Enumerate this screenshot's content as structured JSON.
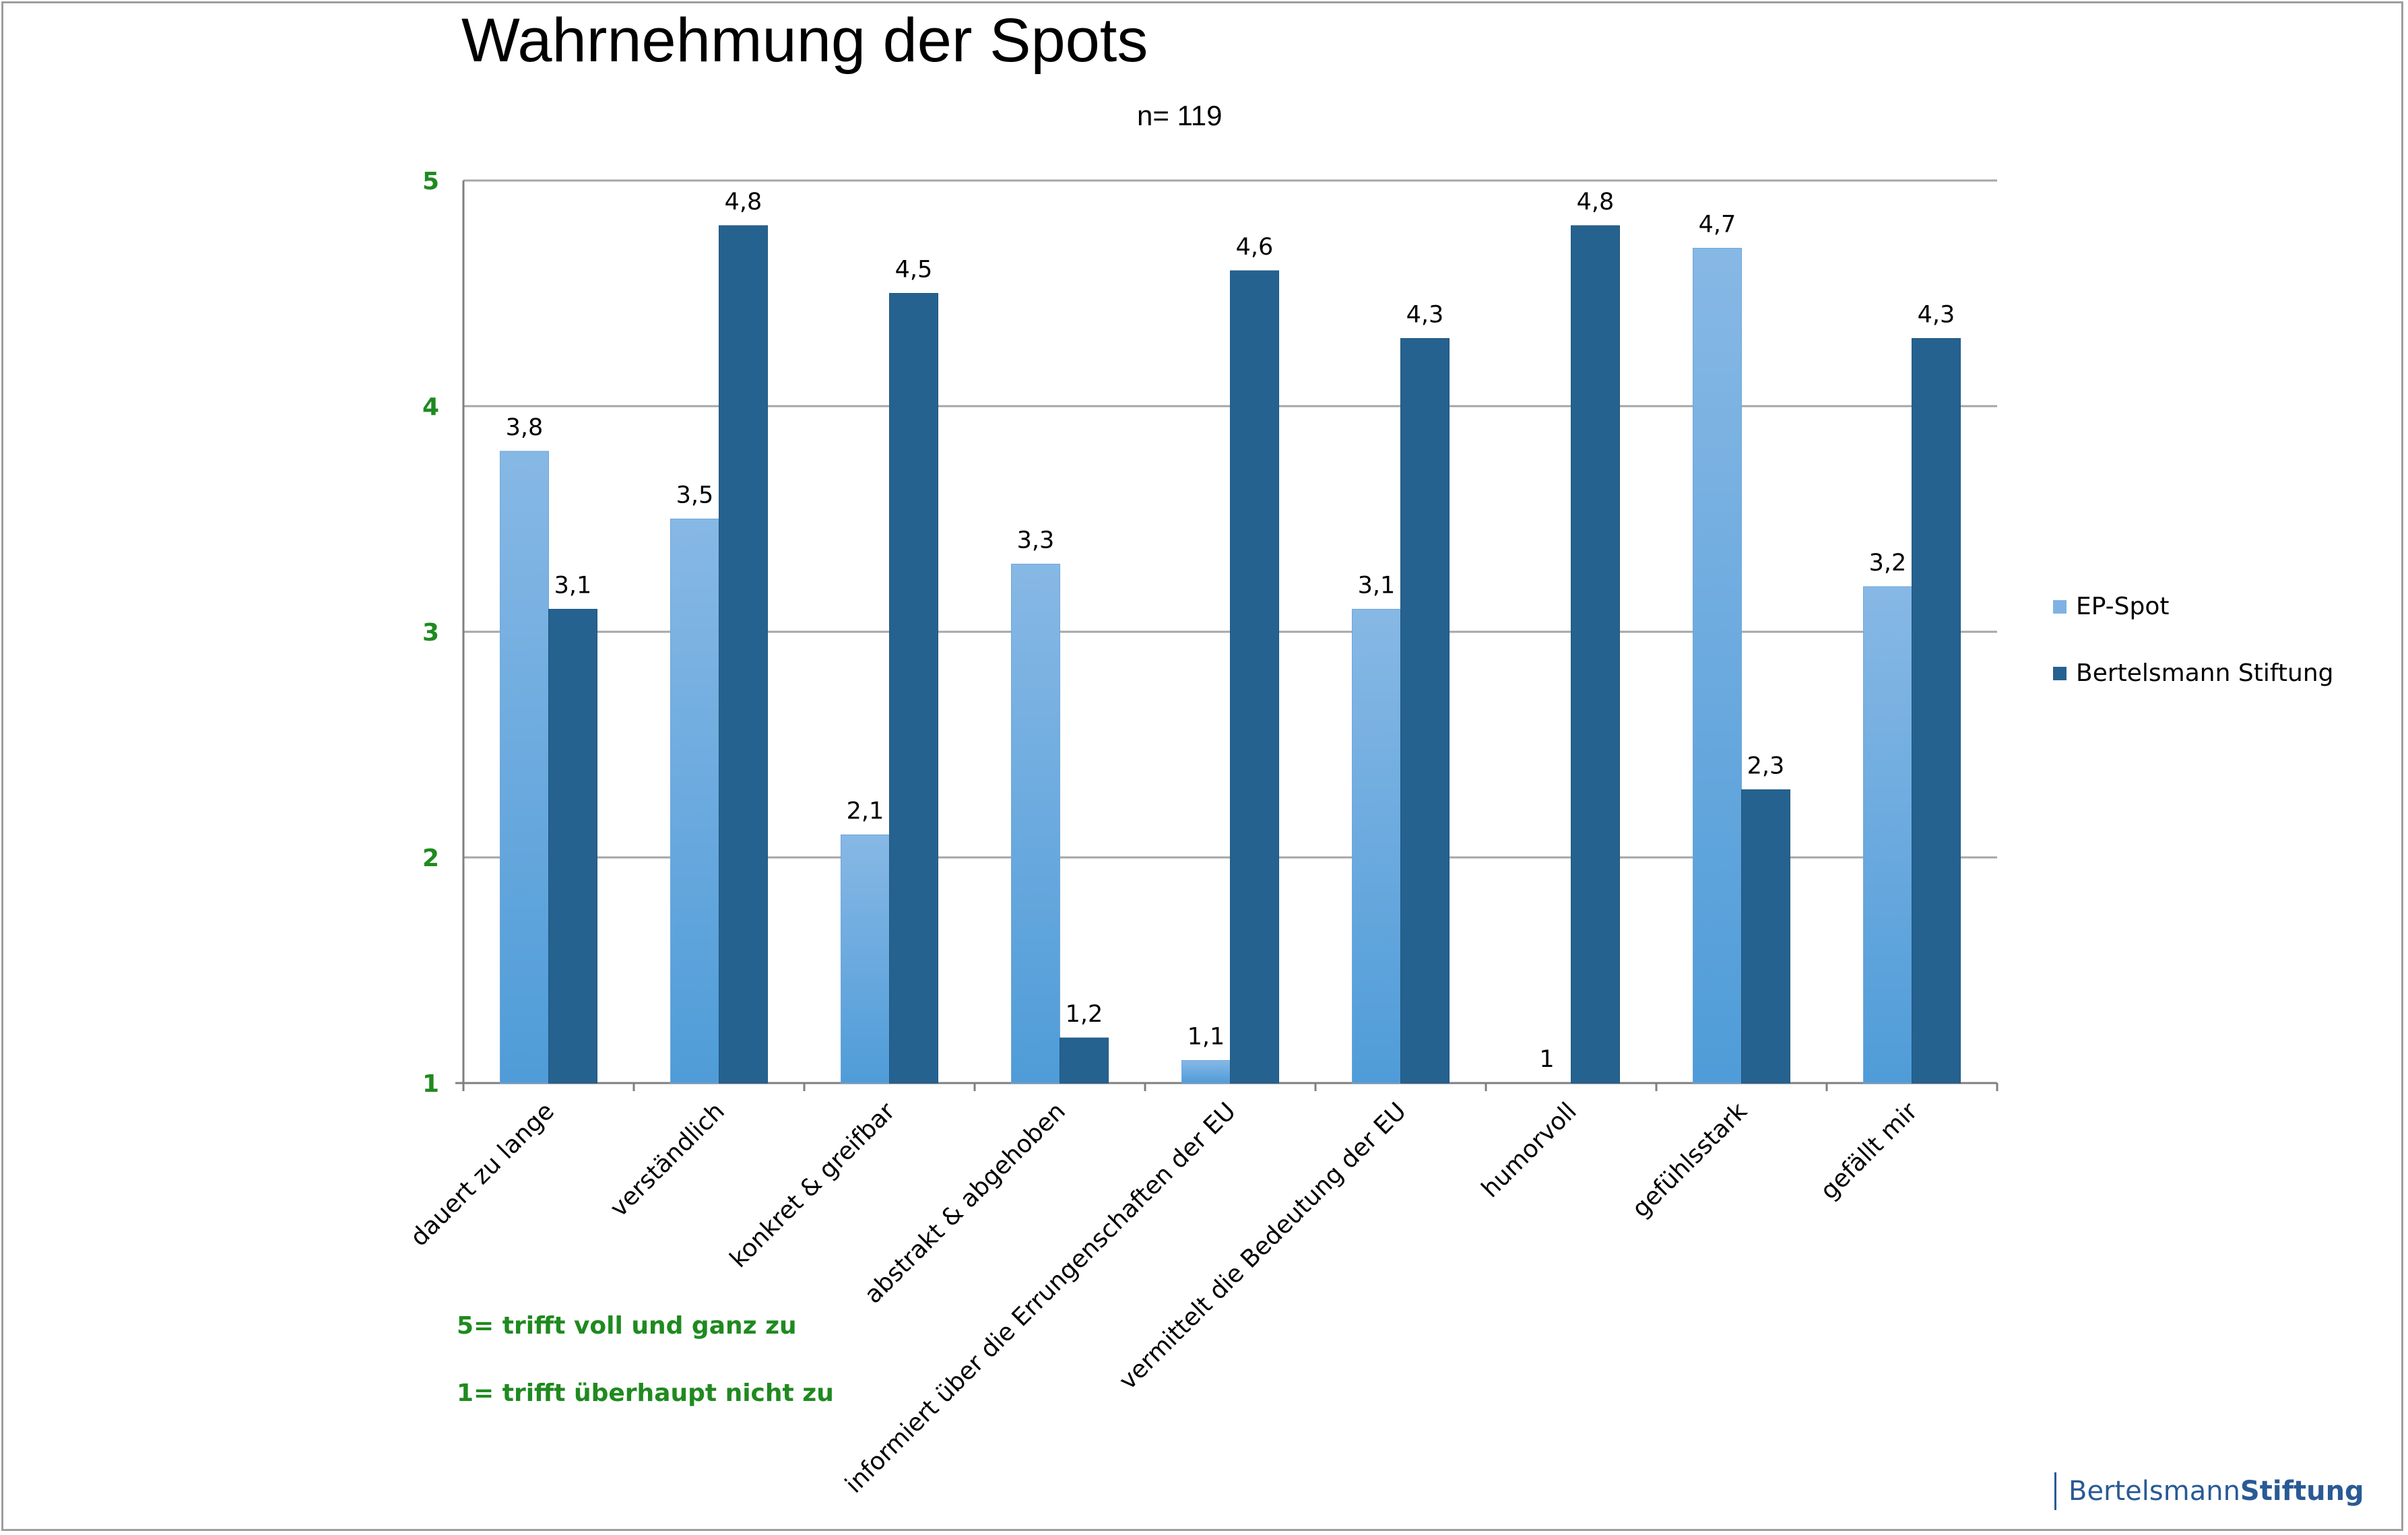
{
  "chart_data": {
    "type": "bar",
    "title": "Wahrnehmung der Spots",
    "subtitle": "n= 119",
    "categories": [
      "dauert zu lange",
      "verständlich",
      "konkret & greifbar",
      "abstrakt & abgehoben",
      "informiert über die Errungenschaften der EU",
      "vermittelt die Bedeutung der EU",
      "humorvoll",
      "gefühlsstark",
      "gefällt mir"
    ],
    "series": [
      {
        "name": "EP-Spot",
        "values": [
          3.8,
          3.5,
          2.1,
          3.3,
          1.1,
          3.1,
          1,
          4.7,
          3.2
        ],
        "labels": [
          "3,8",
          "3,5",
          "2,1",
          "3,3",
          "1,1",
          "3,1",
          "1",
          "4,7",
          "3,2"
        ],
        "color": "#7fb2e2"
      },
      {
        "name": "Bertelsmann Stiftung",
        "values": [
          3.1,
          4.8,
          4.5,
          1.2,
          4.6,
          4.3,
          4.8,
          2.3,
          4.3
        ],
        "labels": [
          "3,1",
          "4,8",
          "4,5",
          "1,2",
          "4,6",
          "4,3",
          "4,8",
          "2,3",
          "4,3"
        ],
        "color": "#26628f"
      }
    ],
    "ylim": [
      1,
      5
    ],
    "yticks": [
      "1",
      "2",
      "3",
      "4",
      "5"
    ],
    "ytick_color": "#1f8a1f",
    "grid": true,
    "legend": "right"
  },
  "notes": {
    "top": "5= trifft voll und ganz zu",
    "bottom": "1= trifft überhaupt nicht zu"
  },
  "brand": {
    "regular": "Bertelsmann",
    "bold": "Stiftung"
  }
}
